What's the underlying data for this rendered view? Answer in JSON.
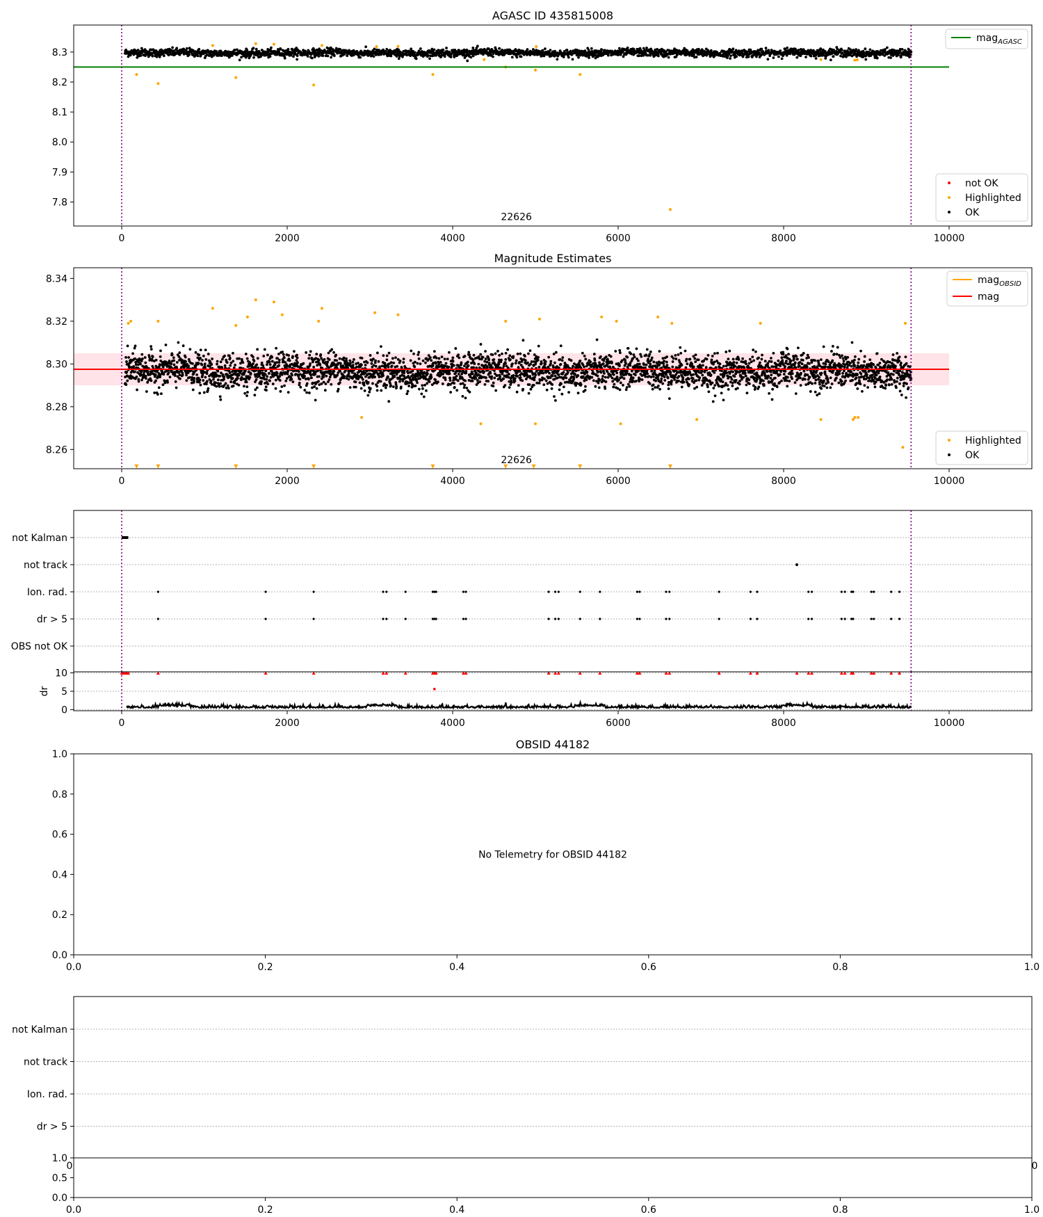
{
  "chart_data": [
    {
      "type": "scatter",
      "title": "AGASC ID 435815008",
      "xlim": [
        -580,
        11000
      ],
      "ylim": [
        7.72,
        8.39
      ],
      "xticks": [
        0,
        2000,
        4000,
        6000,
        8000,
        10000
      ],
      "yticks": [
        7.8,
        7.9,
        8.0,
        8.1,
        8.2,
        8.3
      ],
      "ytick_labels": [
        "7.8",
        "7.9",
        "8.0",
        "8.1",
        "8.2",
        "8.3"
      ],
      "vlines": [
        0,
        9540
      ],
      "reference_lines": [
        {
          "name": "mag",
          "subscript": "AGASC",
          "y": 8.25,
          "x_range": [
            -580,
            10000
          ],
          "color": "#008000"
        }
      ],
      "legend_lines": {
        "position": "top-right"
      },
      "legend_points": {
        "position": "bottom-right",
        "entries": [
          {
            "label": "not OK",
            "color": "#ff0000"
          },
          {
            "label": "Highlighted",
            "color": "#ffa500"
          },
          {
            "label": "OK",
            "color": "#000000"
          }
        ]
      },
      "annotation": {
        "text": "22626",
        "x": 4770,
        "y": 7.73
      },
      "ok_band": {
        "center": 8.297,
        "spread": 0.012,
        "x_range": [
          40,
          9540
        ],
        "color": "#000000"
      },
      "highlighted_points": {
        "x": [
          180,
          440,
          1380,
          2320,
          3760,
          4380,
          4640,
          5000,
          5540,
          6630,
          8450,
          8860,
          8890,
          1100,
          1620,
          1840,
          2420,
          3080,
          3340,
          5010
        ],
        "y": [
          8.225,
          8.195,
          8.215,
          8.19,
          8.225,
          8.275,
          8.25,
          8.24,
          8.225,
          7.775,
          8.275,
          8.273,
          8.274,
          8.322,
          8.328,
          8.326,
          8.322,
          8.318,
          8.319,
          8.318
        ],
        "color": "#ffa500"
      }
    },
    {
      "type": "scatter",
      "title": "Magnitude Estimates",
      "xlim": [
        -580,
        11000
      ],
      "ylim": [
        8.251,
        8.345
      ],
      "xticks": [
        0,
        2000,
        4000,
        6000,
        8000,
        10000
      ],
      "yticks": [
        8.26,
        8.28,
        8.3,
        8.32,
        8.34
      ],
      "ytick_labels": [
        "8.26",
        "8.28",
        "8.30",
        "8.32",
        "8.34"
      ],
      "vlines": [
        0,
        9540
      ],
      "reference_lines": [
        {
          "name": "mag",
          "subscript": "OBSID",
          "color": "#ffa500"
        },
        {
          "name": "mag",
          "y": 8.2975,
          "x_range": [
            -580,
            10000
          ],
          "color": "#ff0000"
        }
      ],
      "band": {
        "y_range": [
          8.29,
          8.305
        ],
        "x_range": [
          -580,
          10000
        ],
        "color": "#ffc0cb"
      },
      "legend_lines": {
        "position": "top-right"
      },
      "legend_points": {
        "position": "bottom-right",
        "entries": [
          {
            "label": "Highlighted",
            "color": "#ffa500"
          },
          {
            "label": "OK",
            "color": "#000000"
          }
        ]
      },
      "annotation": {
        "text": "22626",
        "x": 4770,
        "y": 8.2525
      },
      "ok_band": {
        "center": 8.2965,
        "spread": 0.0075,
        "x_range": [
          40,
          9540
        ],
        "color": "#000000"
      },
      "highlighted_points": {
        "x": [
          80,
          110,
          440,
          1100,
          1380,
          1520,
          1620,
          1840,
          1940,
          2380,
          2420,
          2900,
          3060,
          3340,
          4340,
          4640,
          5000,
          5050,
          5800,
          5980,
          6030,
          6480,
          6650,
          6950,
          7720,
          8450,
          8840,
          8860,
          8900,
          9440,
          9470
        ],
        "y": [
          8.319,
          8.32,
          8.32,
          8.326,
          8.318,
          8.322,
          8.33,
          8.329,
          8.323,
          8.32,
          8.326,
          8.275,
          8.324,
          8.323,
          8.272,
          8.32,
          8.272,
          8.321,
          8.322,
          8.32,
          8.272,
          8.322,
          8.319,
          8.274,
          8.319,
          8.274,
          8.274,
          8.275,
          8.275,
          8.261,
          8.319
        ],
        "color": "#ffa500"
      },
      "offscale_markers": {
        "x": [
          180,
          440,
          1380,
          2320,
          3760,
          4640,
          4980,
          5540,
          6630
        ],
        "y": 8.252,
        "color": "#ffa500"
      }
    },
    {
      "type": "scatter",
      "title": "",
      "xlim": [
        -580,
        11000
      ],
      "category_labels": [
        "not Kalman",
        "not track",
        "Ion. rad.",
        "dr > 5",
        "OBS not OK"
      ],
      "vlines": [
        0,
        9540
      ],
      "not_kalman": {
        "x_range": [
          0,
          80
        ]
      },
      "not_track": {
        "x": [
          8160
        ]
      },
      "ion_rad": {
        "x": [
          440,
          1740,
          2320,
          3160,
          3200,
          3430,
          3760,
          3780,
          3800,
          4130,
          4160,
          5160,
          5240,
          5280,
          5540,
          5780,
          6230,
          6260,
          6580,
          6620,
          7220,
          7600,
          7680,
          8300,
          8340,
          8700,
          8740,
          8820,
          8840,
          9060,
          9090,
          9300,
          9400
        ]
      },
      "dr_gt_5": {
        "x": [
          440,
          1740,
          2320,
          3160,
          3200,
          3430,
          3760,
          3780,
          3800,
          4130,
          4160,
          5160,
          5240,
          5280,
          5540,
          5780,
          6230,
          6260,
          6580,
          6620,
          7220,
          7600,
          7680,
          8300,
          8340,
          8700,
          8740,
          8820,
          8840,
          9060,
          9090,
          9300,
          9400
        ]
      }
    },
    {
      "type": "scatter",
      "title": "",
      "xlim": [
        -580,
        11000
      ],
      "ylim": [
        -0.3,
        10.3
      ],
      "ylabel": "dr",
      "yticks": [
        0,
        5,
        10
      ],
      "ytick_labels": [
        "0",
        "5",
        "10"
      ],
      "xticks": [
        0,
        2000,
        4000,
        6000,
        8000,
        10000
      ],
      "vlines": [
        0,
        9540
      ],
      "capped_points": {
        "x": [
          0,
          20,
          40,
          60,
          80,
          440,
          1740,
          2320,
          3160,
          3200,
          3430,
          3760,
          3780,
          3800,
          4130,
          4160,
          5160,
          5240,
          5280,
          5540,
          5780,
          6230,
          6260,
          6580,
          6620,
          7220,
          7600,
          7680,
          8160,
          8300,
          8340,
          8700,
          8740,
          8820,
          8840,
          9060,
          9090,
          9300,
          9400
        ],
        "y": 10,
        "color": "#ff0000"
      },
      "outlier": {
        "x": 3780,
        "y": 5.6,
        "color": "#ff0000"
      }
    },
    {
      "type": "scatter",
      "title": "OBSID 44182",
      "xlim": [
        0,
        1
      ],
      "ylim": [
        0,
        1
      ],
      "xticks": [
        0,
        0.2,
        0.4,
        0.6,
        0.8,
        1.0
      ],
      "xtick_labels": [
        "0.0",
        "0.2",
        "0.4",
        "0.6",
        "0.8",
        "1.0"
      ],
      "yticks": [
        0,
        0.2,
        0.4,
        0.6,
        0.8,
        1.0
      ],
      "ytick_labels": [
        "0.0",
        "0.2",
        "0.4",
        "0.6",
        "0.8",
        "1.0"
      ],
      "message": "No Telemetry for OBSID 44182"
    },
    {
      "type": "scatter",
      "title": "",
      "category_labels": [
        "not Kalman",
        "not track",
        "Ion. rad.",
        "dr > 5"
      ],
      "hidden_xtick_labels": [
        "0",
        "0"
      ]
    },
    {
      "type": "scatter",
      "title": "",
      "xlim": [
        0,
        1
      ],
      "ylim": [
        0,
        1
      ],
      "xticks": [
        0,
        0.2,
        0.4,
        0.6,
        0.8,
        1.0
      ],
      "xtick_labels": [
        "0.0",
        "0.2",
        "0.4",
        "0.6",
        "0.8",
        "1.0"
      ],
      "yticks": [
        0,
        0.5,
        1.0
      ],
      "ytick_labels": [
        "0.0",
        "0.5",
        "1.0"
      ]
    }
  ]
}
